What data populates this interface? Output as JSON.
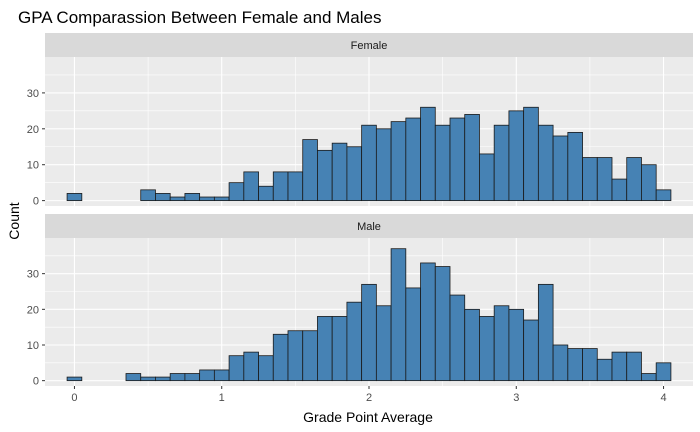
{
  "chart_data": {
    "type": "bar",
    "title": "GPA Comparassion Between Female and Males",
    "xlabel": "Grade Point Average",
    "ylabel": "Count",
    "x_ticks": [
      0,
      1,
      2,
      3,
      4
    ],
    "y_ticks": [
      0,
      10,
      20,
      30
    ],
    "xlim": [
      -0.2,
      4.2
    ],
    "ylim": [
      -1.5,
      40
    ],
    "bin_width": 0.1,
    "bin_starts": [
      -0.05,
      0.05,
      0.15,
      0.25,
      0.35,
      0.45,
      0.55,
      0.65,
      0.75,
      0.85,
      0.95,
      1.05,
      1.15,
      1.25,
      1.35,
      1.45,
      1.55,
      1.65,
      1.75,
      1.85,
      1.95,
      2.05,
      2.15,
      2.25,
      2.35,
      2.45,
      2.55,
      2.65,
      2.75,
      2.85,
      2.95,
      3.05,
      3.15,
      3.25,
      3.35,
      3.45,
      3.55,
      3.65,
      3.75,
      3.85,
      3.95
    ],
    "grid": true,
    "colors": {
      "bar_fill": "#4682b4",
      "bar_stroke": "#1a1a1a",
      "panel_bg": "#ebebeb",
      "strip_bg": "#d9d9d9",
      "grid": "#ffffff",
      "axis_text": "#4d4d4d"
    },
    "panels": [
      {
        "name": "Female",
        "values": [
          2,
          0,
          0,
          0,
          0,
          3,
          2,
          1,
          2,
          1,
          1,
          5,
          8,
          4,
          8,
          8,
          17,
          14,
          16,
          15,
          21,
          20,
          22,
          23,
          26,
          21,
          23,
          24,
          13,
          21,
          25,
          26,
          21,
          18,
          19,
          12,
          12,
          6,
          12,
          10,
          3
        ]
      },
      {
        "name": "Male",
        "values": [
          1,
          0,
          0,
          0,
          2,
          1,
          1,
          2,
          2,
          3,
          3,
          7,
          8,
          7,
          13,
          14,
          14,
          18,
          18,
          22,
          27,
          21,
          37,
          26,
          33,
          32,
          24,
          20,
          18,
          21,
          20,
          17,
          27,
          10,
          9,
          9,
          6,
          8,
          8,
          2,
          5
        ]
      }
    ]
  }
}
